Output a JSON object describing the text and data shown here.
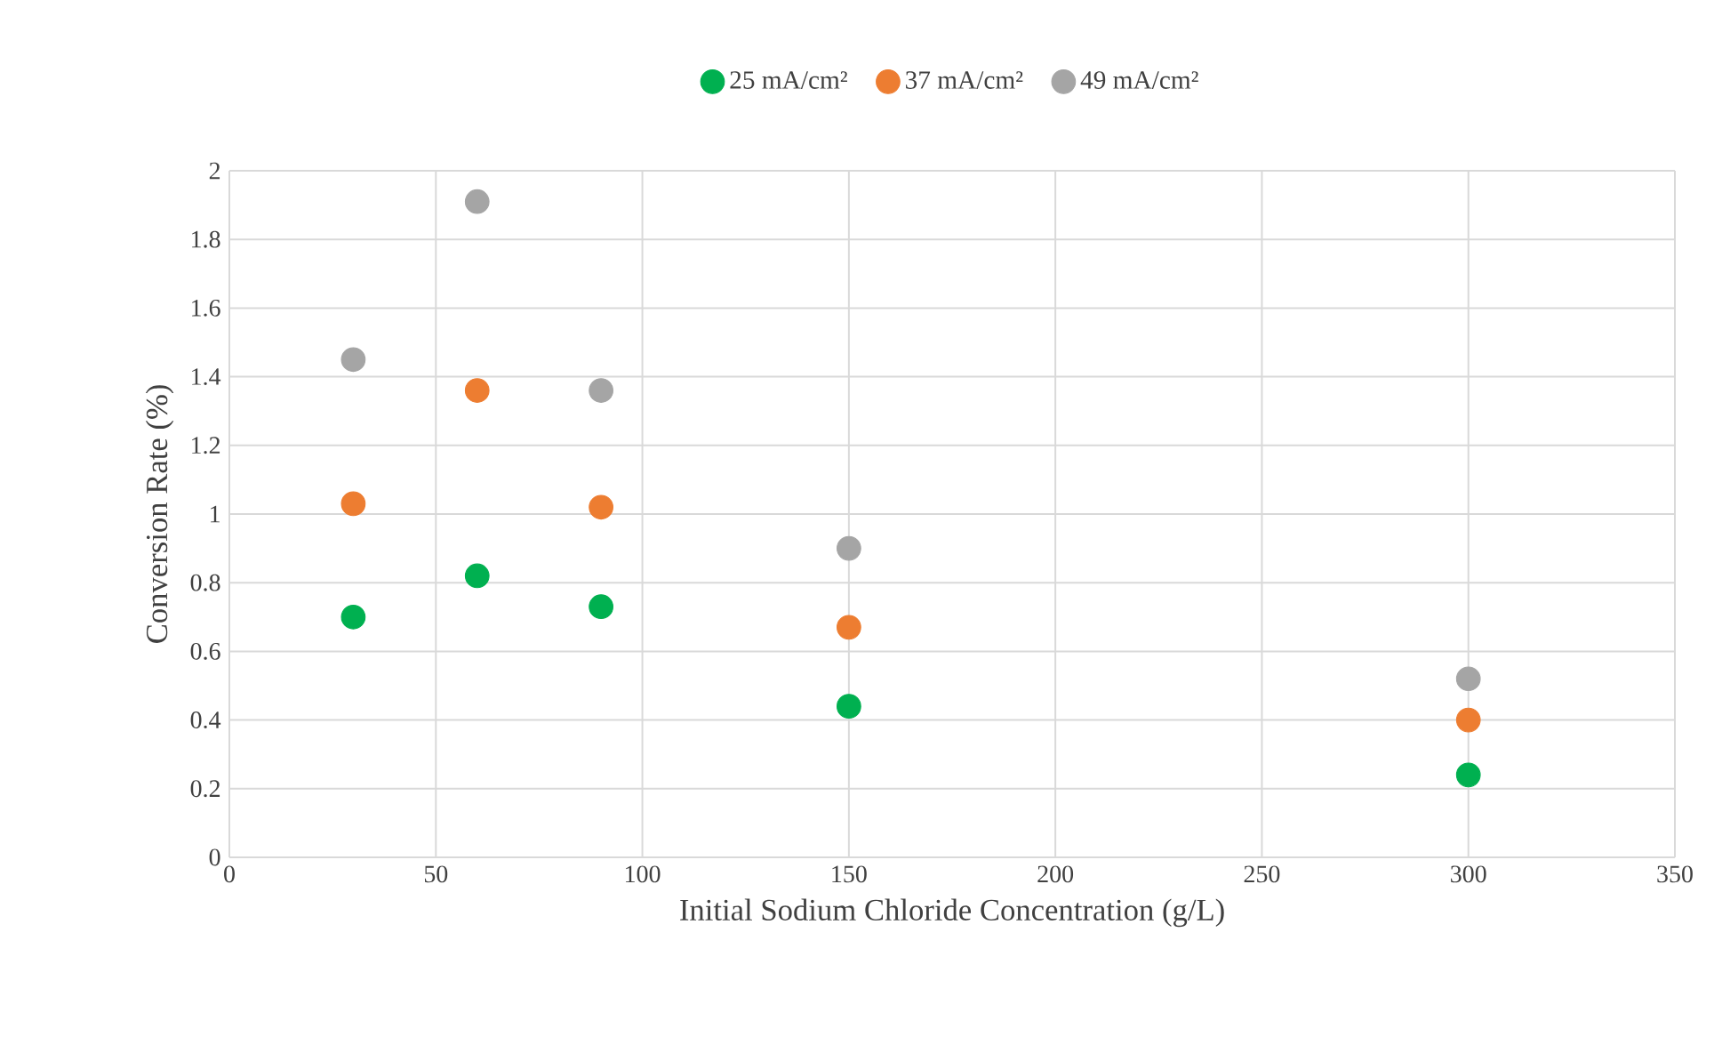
{
  "chart_data": {
    "type": "scatter",
    "xlabel": "Initial Sodium Chloride Concentration (g/L)",
    "ylabel": "Conversion Rate (%)",
    "x": [
      30,
      60,
      90,
      150,
      300
    ],
    "series": [
      {
        "name": "25 mA/cm²",
        "color": "#00b050",
        "values": [
          0.7,
          0.82,
          0.73,
          0.44,
          0.24
        ]
      },
      {
        "name": "37 mA/cm²",
        "color": "#ed7d31",
        "values": [
          1.03,
          1.36,
          1.02,
          0.67,
          0.4
        ]
      },
      {
        "name": "49 mA/cm²",
        "color": "#a5a5a5",
        "values": [
          1.45,
          1.91,
          1.36,
          0.9,
          0.52
        ]
      }
    ],
    "xlim": [
      0,
      350
    ],
    "ylim": [
      0,
      2
    ],
    "xticks": [
      0,
      50,
      100,
      150,
      200,
      250,
      300,
      350
    ],
    "yticks": [
      0,
      0.2,
      0.4,
      0.6,
      0.8,
      1,
      1.2,
      1.4,
      1.6,
      1.8,
      2
    ],
    "grid": true,
    "legend": "top",
    "marker": "circle"
  }
}
